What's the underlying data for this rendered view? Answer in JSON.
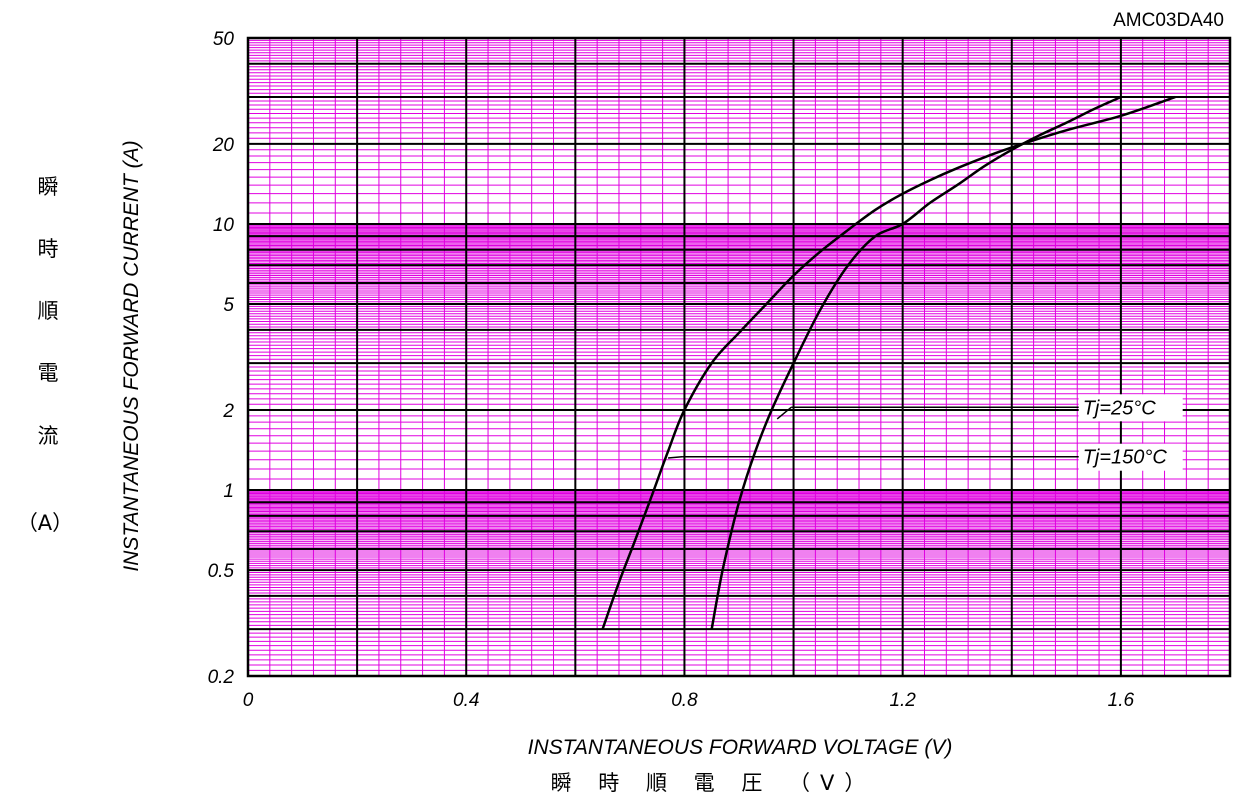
{
  "chart_data": {
    "type": "line",
    "chart_id": "AMC03DA40",
    "xlabel": "INSTANTANEOUS FORWARD VOLTAGE (V)",
    "xlabel_jp": "瞬 時 順 電 圧 （V）",
    "ylabel": "INSTANTANEOUS FORWARD CURRENT (A)",
    "ylabel_jp": [
      "瞬",
      "時",
      "順",
      "電",
      "流",
      "（A）"
    ],
    "x_scale": "linear",
    "y_scale": "log",
    "xlim": [
      0,
      1.8
    ],
    "ylim": [
      0.2,
      50
    ],
    "x_ticks": [
      "0",
      "0.4",
      "0.8",
      "1.2",
      "1.6"
    ],
    "y_ticks": [
      "0.2",
      "0.5",
      "1",
      "2",
      "5",
      "10",
      "20",
      "50"
    ],
    "grid": true,
    "series": [
      {
        "name": "Tj=25°C",
        "x": [
          0.85,
          0.87,
          0.9,
          0.93,
          0.96,
          1.0,
          1.05,
          1.1,
          1.15,
          1.2,
          1.25,
          1.3,
          1.35,
          1.4,
          1.45,
          1.5,
          1.55,
          1.6
        ],
        "y": [
          0.3,
          0.5,
          0.9,
          1.4,
          2.0,
          3.0,
          4.8,
          7.0,
          9.0,
          10.0,
          12.0,
          14.0,
          16.5,
          19.0,
          21.5,
          24.0,
          27.0,
          30.0
        ]
      },
      {
        "name": "Tj=150°C",
        "x": [
          0.65,
          0.68,
          0.71,
          0.74,
          0.77,
          0.8,
          0.85,
          0.9,
          0.95,
          1.0,
          1.05,
          1.1,
          1.15,
          1.2,
          1.25,
          1.3,
          1.35,
          1.4,
          1.5,
          1.6,
          1.7
        ],
        "y": [
          0.3,
          0.45,
          0.65,
          0.95,
          1.4,
          2.0,
          3.0,
          3.9,
          5.0,
          6.4,
          7.9,
          9.5,
          11.3,
          13.0,
          14.6,
          16.2,
          17.8,
          19.4,
          22.5,
          25.5,
          30.0
        ]
      }
    ],
    "annotations": [
      {
        "text": "Tj=25°C",
        "target_series": 0
      },
      {
        "text": "Tj=150°C",
        "target_series": 1
      }
    ]
  }
}
